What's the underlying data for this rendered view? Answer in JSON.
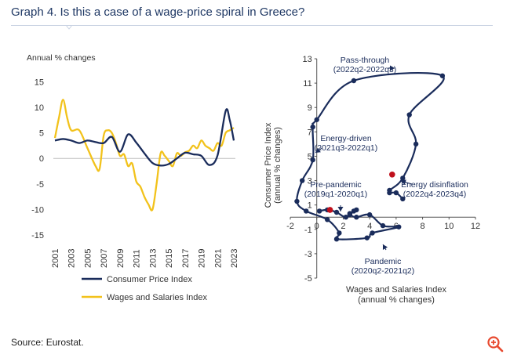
{
  "title": "Graph 4. Is this a case of a wage-price spiral in Greece?",
  "source": "Source: Eurostat.",
  "colors": {
    "cpi": "#1a2c5b",
    "wages": "#f2c21b",
    "scatter_line": "#1a2c5b",
    "highlight": "#c0101c",
    "accent": "#e8492f"
  },
  "icons": {
    "zoom": "zoom-in-icon"
  },
  "chart_data": [
    {
      "type": "line",
      "title": "",
      "ylabel": "Annual % changes",
      "xlabel": "",
      "ylim": [
        -15,
        15
      ],
      "yticks": [
        -15,
        -10,
        -5,
        0,
        5,
        10,
        15
      ],
      "xlim": [
        2001,
        2023
      ],
      "xticks": [
        "2001",
        "2003",
        "2005",
        "2007",
        "2009",
        "2011",
        "2013",
        "2015",
        "2017",
        "2019",
        "2021",
        "2023"
      ],
      "grid": false,
      "legend": "bottom",
      "series": [
        {
          "name": "Consumer Price Index",
          "x": [
            2001,
            2002,
            2003,
            2004,
            2005,
            2006,
            2007,
            2008,
            2009,
            2010,
            2011,
            2012,
            2013,
            2014,
            2015,
            2016,
            2017,
            2018,
            2019,
            2020,
            2021,
            2022,
            2022.5,
            2023
          ],
          "values": [
            3.5,
            3.8,
            3.5,
            3.0,
            3.5,
            3.2,
            3.0,
            4.2,
            1.3,
            4.7,
            3.1,
            1.0,
            -0.9,
            -1.4,
            -1.1,
            0.0,
            1.1,
            0.8,
            0.5,
            -1.3,
            0.6,
            9.3,
            7.5,
            3.5
          ]
        },
        {
          "name": "Wages and Salaries Index",
          "x": [
            2001,
            2001.5,
            2002,
            2002.5,
            2003,
            2004,
            2005,
            2006,
            2006.5,
            2007,
            2007.5,
            2008,
            2008.5,
            2009,
            2009.5,
            2010,
            2010.5,
            2011,
            2011.5,
            2012,
            2012.5,
            2013,
            2013.5,
            2014,
            2014.5,
            2015,
            2015.5,
            2016,
            2016.5,
            2017,
            2017.5,
            2018,
            2018.5,
            2019,
            2019.5,
            2020,
            2020.5,
            2021,
            2021.5,
            2022,
            2022.5,
            2023
          ],
          "values": [
            4.0,
            8.0,
            11.5,
            8.0,
            5.5,
            5.5,
            2.0,
            -1.5,
            -2.0,
            4.5,
            5.5,
            5.0,
            3.0,
            0.5,
            0.8,
            -1.5,
            -1.0,
            -4.5,
            -5.5,
            -7.5,
            -9.0,
            -10.0,
            -5.0,
            1.0,
            0.5,
            -0.5,
            -1.5,
            1.0,
            0.5,
            1.2,
            1.5,
            2.5,
            2.0,
            3.5,
            2.5,
            2.0,
            1.5,
            3.0,
            2.5,
            5.0,
            5.5,
            6.0
          ]
        }
      ]
    },
    {
      "type": "scatter",
      "title": "",
      "xlabel": "Wages and Salaries Index\n(annual % changes)",
      "ylabel": "Consumer Price Index\n(annual % changes)",
      "xlim": [
        -2,
        12
      ],
      "ylim": [
        -5,
        13
      ],
      "xticks": [
        -2,
        0,
        2,
        4,
        6,
        8,
        10,
        12
      ],
      "yticks": [
        -5,
        -3,
        -1,
        1,
        3,
        5,
        7,
        9,
        11,
        13
      ],
      "grid": false,
      "legend": "none",
      "series": [
        {
          "name": "",
          "x": [
            0.2,
            0.8,
            1.5,
            2.2,
            2.8,
            3.0,
            2.5,
            2.5,
            3.0,
            4.0,
            5.0,
            6.2,
            4.2,
            3.8,
            1.5,
            1.7,
            0.8,
            -0.8,
            -1.5,
            -1.1,
            -0.3,
            -0.3,
            0.0,
            2.8,
            9.5,
            7.0,
            7.5,
            6.5,
            5.5,
            5.5,
            6.0,
            6.5
          ],
          "values": [
            0.5,
            0.6,
            0.4,
            0.0,
            0.5,
            0.6,
            0.3,
            0.2,
            0.0,
            0.2,
            -0.7,
            -0.8,
            -1.3,
            -1.7,
            -1.8,
            -1.3,
            -0.2,
            0.5,
            1.3,
            3.0,
            4.7,
            7.4,
            8.0,
            11.2,
            11.6,
            8.4,
            6.0,
            3.2,
            2.2,
            2.0,
            2.0,
            1.5
          ]
        }
      ],
      "highlight_points": [
        {
          "x": 1.0,
          "y": 0.6
        },
        {
          "x": 5.7,
          "y": 3.5
        }
      ],
      "annotations": [
        {
          "lines": [
            "Pass-through",
            "(2022q2-2022q3)"
          ]
        },
        {
          "lines": [
            "Energy-driven",
            "(2021q3-2022q1)"
          ]
        },
        {
          "lines": [
            "Pre-pandemic",
            "(2019q1-2020q1)"
          ]
        },
        {
          "lines": [
            "Energy disinflation",
            "(2022q4-2023q4)"
          ]
        },
        {
          "lines": [
            "Pandemic",
            "(2020q2-2021q2)"
          ]
        }
      ]
    }
  ]
}
